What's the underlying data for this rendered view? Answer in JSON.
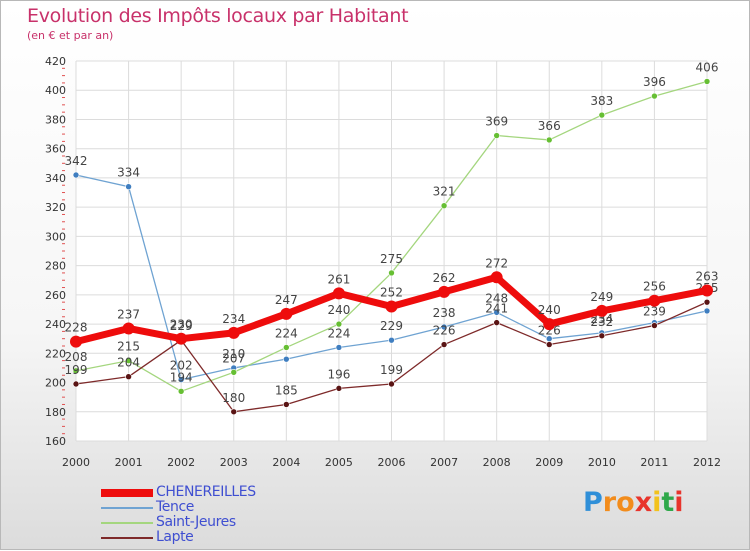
{
  "header": {
    "title": "Evolution des Impôts locaux par Habitant",
    "subtitle": "(en € et par an)"
  },
  "logo": {
    "text": "Proxiti",
    "letter_colors": [
      "#2f8fd8",
      "#f28c1c",
      "#f28c1c",
      "#e8342c",
      "#f2c21c",
      "#2fa84a",
      "#e8342c"
    ]
  },
  "chart_data": {
    "type": "line",
    "x": [
      "2000",
      "2001",
      "2002",
      "2003",
      "2004",
      "2005",
      "2006",
      "2007",
      "2008",
      "2009",
      "2010",
      "2011",
      "2012"
    ],
    "ylim": [
      160,
      420
    ],
    "yticks": [
      160,
      180,
      200,
      220,
      240,
      260,
      280,
      300,
      320,
      340,
      360,
      380,
      400,
      420
    ],
    "grid": true,
    "legend_position": "bottom-left",
    "series": [
      {
        "name": "Tence",
        "color": "#6fa3d2",
        "marker_color": "#3f7ec0",
        "width": 1.3,
        "values": [
          342,
          334,
          202,
          210,
          216,
          224,
          229,
          238,
          248,
          230,
          234,
          241,
          249
        ],
        "labels": [
          "342",
          "334",
          "202",
          "210",
          "",
          "224",
          "229",
          "238",
          "248",
          "",
          "234",
          "",
          ""
        ]
      },
      {
        "name": "Saint-Jeures",
        "color": "#a4d67e",
        "marker_color": "#66bf33",
        "width": 1.3,
        "values": [
          208,
          215,
          194,
          207,
          224,
          240,
          275,
          321,
          369,
          366,
          383,
          396,
          406
        ],
        "labels": [
          "208",
          "215",
          "194",
          "207",
          "224",
          "240",
          "275",
          "321",
          "369",
          "366",
          "383",
          "396",
          "406"
        ]
      },
      {
        "name": "Lapte",
        "color": "#7e2a2a",
        "marker_color": "#5a1414",
        "width": 1.3,
        "values": [
          199,
          204,
          229,
          180,
          185,
          196,
          199,
          226,
          241,
          226,
          232,
          239,
          255
        ],
        "labels": [
          "199",
          "204",
          "229",
          "180",
          "185",
          "196",
          "199",
          "226",
          "241",
          "226",
          "232",
          "239",
          "255"
        ]
      },
      {
        "name": "CHENEREILLES",
        "color": "#ee0c0c",
        "marker_color": "#ee0c0c",
        "width": 7,
        "values": [
          228,
          237,
          230,
          234,
          247,
          261,
          252,
          262,
          272,
          240,
          249,
          256,
          263
        ],
        "labels": [
          "228",
          "237",
          "230",
          "234",
          "247",
          "261",
          "252",
          "262",
          "272",
          "240",
          "249",
          "256",
          "263"
        ]
      }
    ],
    "legend_order": [
      "CHENEREILLES",
      "Tence",
      "Saint-Jeures",
      "Lapte"
    ]
  }
}
